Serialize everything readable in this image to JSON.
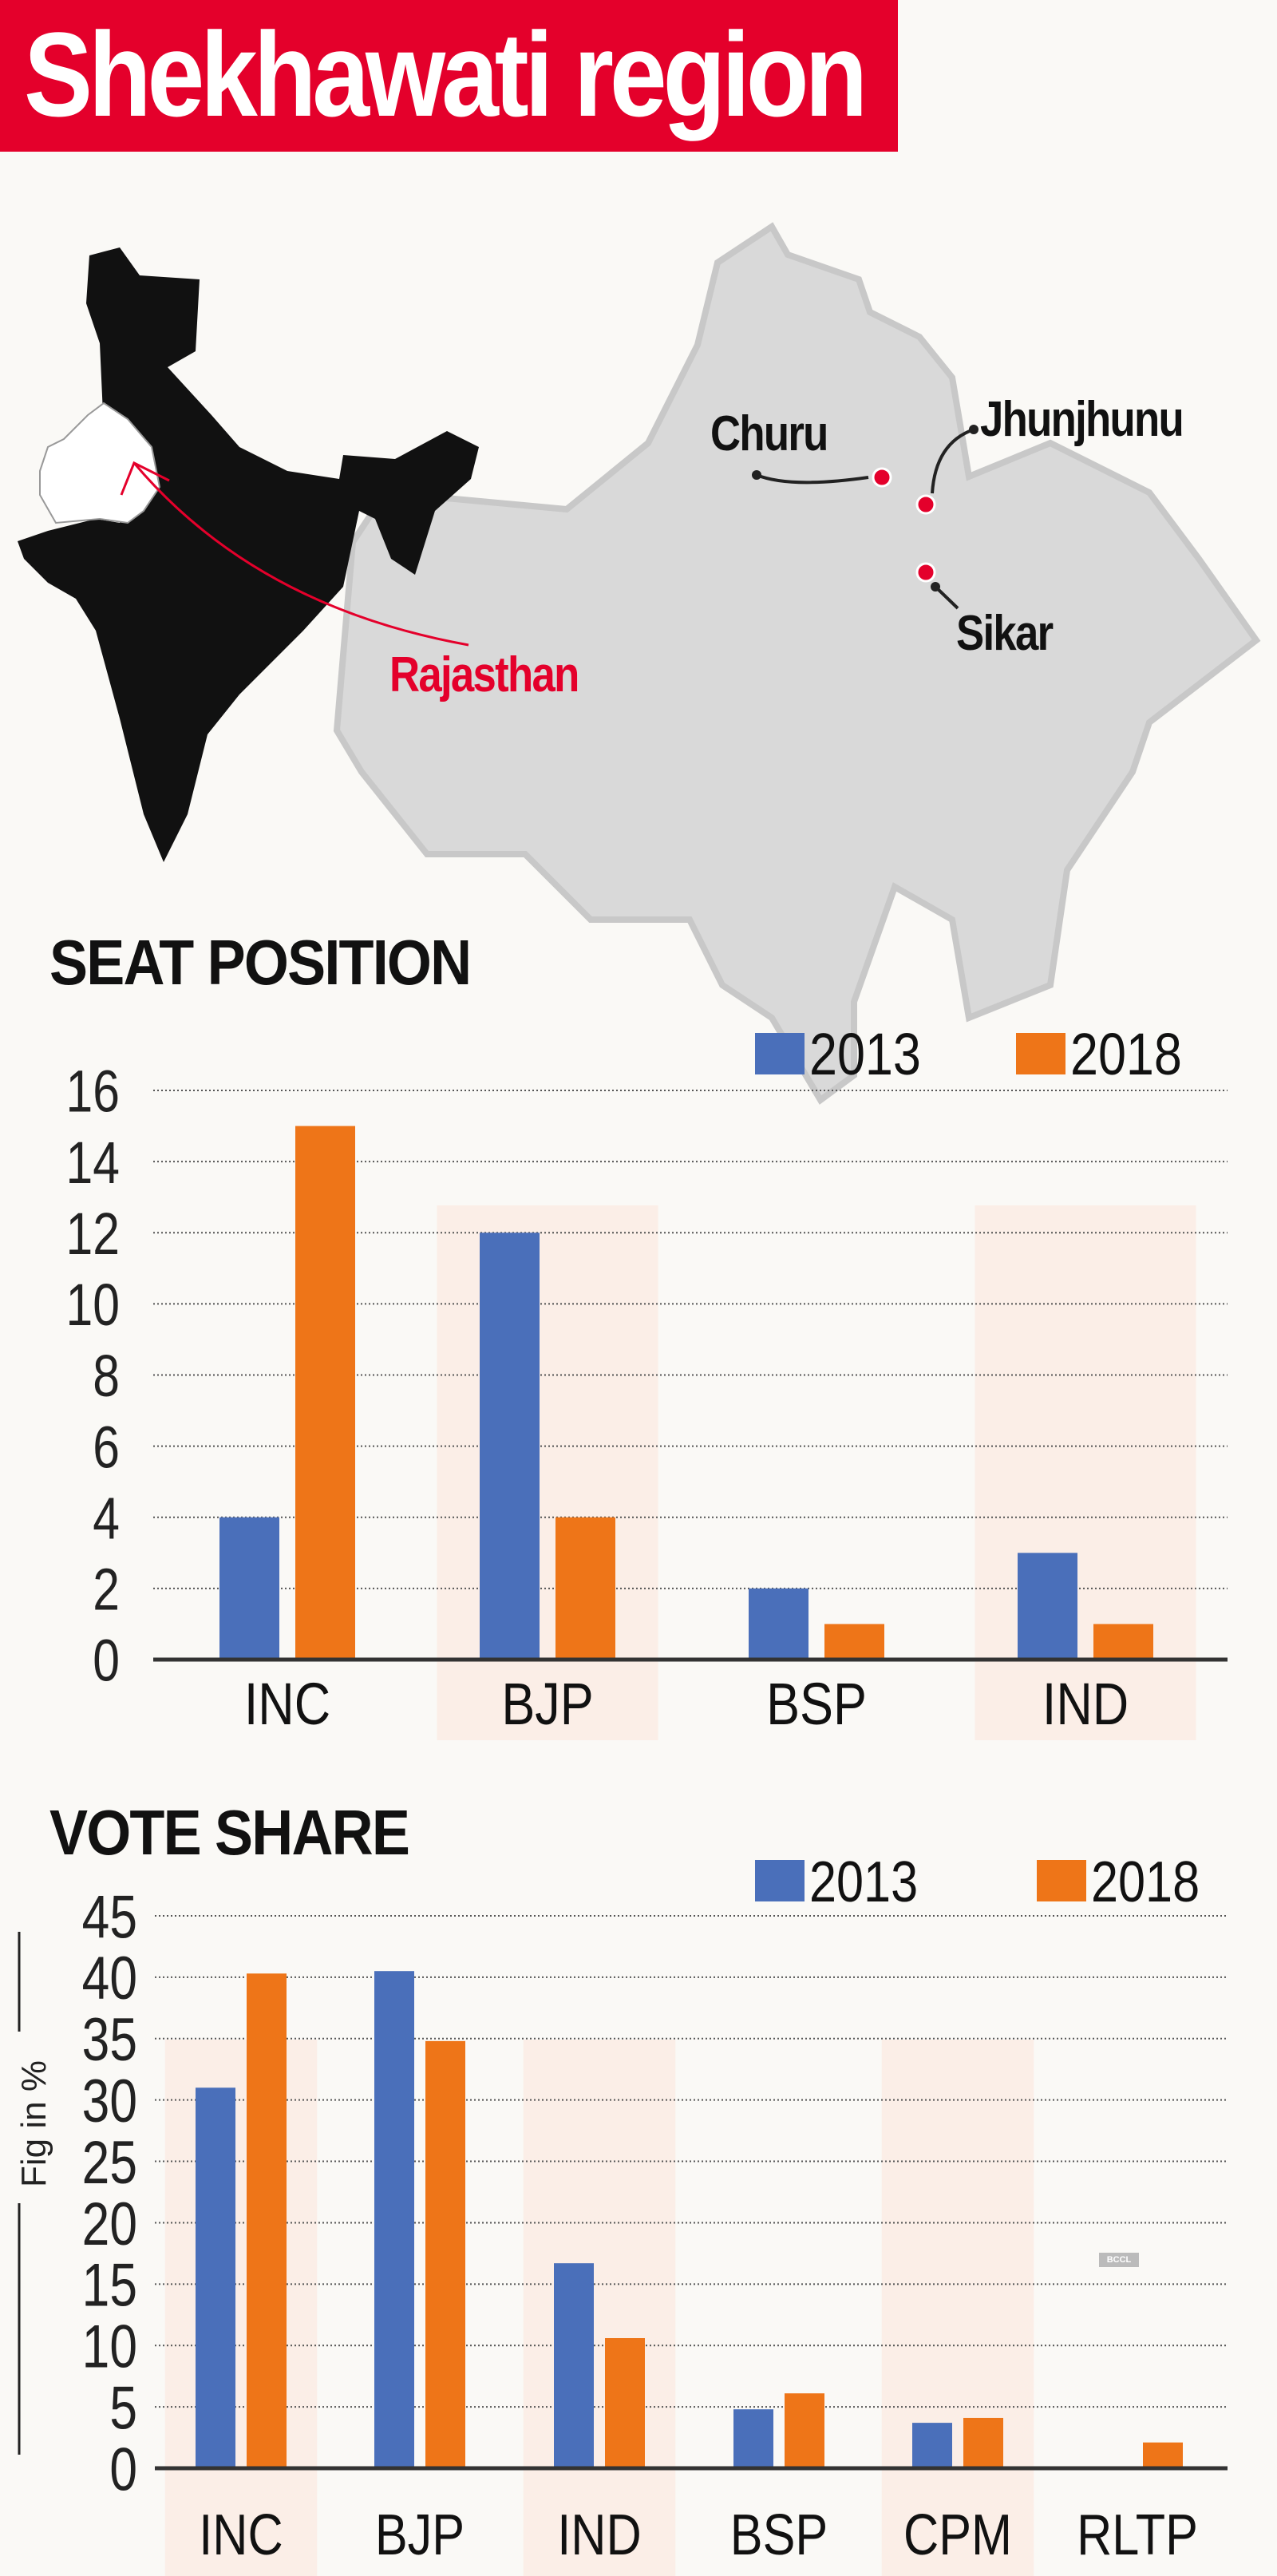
{
  "title": "Shekhawati region",
  "map": {
    "state_label": "Rajasthan",
    "districts": [
      "Churu",
      "Jhunjhunu",
      "Sikar"
    ],
    "colors": {
      "india": "#111111",
      "rajasthan": "#d9d9d9",
      "highlight": "#e4002b"
    }
  },
  "watermark": "BCCL",
  "chart_data": [
    {
      "type": "bar",
      "title": "SEAT POSITION",
      "categories": [
        "INC",
        "BJP",
        "BSP",
        "IND"
      ],
      "series": [
        {
          "name": "2013",
          "color": "#4a6fba",
          "values": [
            4,
            12,
            2,
            3
          ]
        },
        {
          "name": "2018",
          "color": "#ee7518",
          "values": [
            15,
            4,
            1,
            1
          ]
        }
      ],
      "yticks": [
        "0",
        "2",
        "4",
        "6",
        "8",
        "10",
        "12",
        "14",
        "16"
      ],
      "ylim": [
        0,
        16
      ],
      "ylabel": "",
      "grid": true,
      "legend": "top-right"
    },
    {
      "type": "bar",
      "title": "VOTE SHARE",
      "categories": [
        "INC",
        "BJP",
        "IND",
        "BSP",
        "CPM",
        "RLTP"
      ],
      "series": [
        {
          "name": "2013",
          "color": "#4a6fba",
          "values": [
            31,
            40.5,
            16.7,
            4.8,
            3.7,
            null
          ]
        },
        {
          "name": "2018",
          "color": "#ee7518",
          "values": [
            40.3,
            34.8,
            10.6,
            6.1,
            4.1,
            2.1
          ]
        }
      ],
      "yticks": [
        "0",
        "5",
        "10",
        "15",
        "20",
        "25",
        "30",
        "35",
        "40",
        "45"
      ],
      "ylim": [
        0,
        45
      ],
      "ylabel": "Fig in %",
      "grid": true,
      "legend": "top-right"
    }
  ]
}
